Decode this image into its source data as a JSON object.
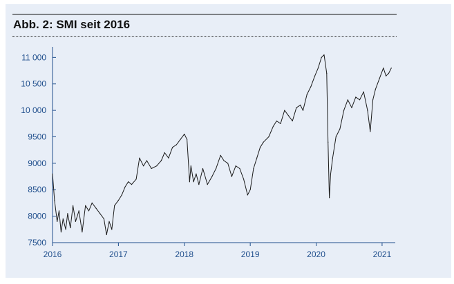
{
  "chart_data": {
    "type": "line",
    "title": "Abb. 2: SMI seit 2016",
    "xlabel": "",
    "ylabel": "",
    "x_tick_labels": [
      "2016",
      "2017",
      "2018",
      "2019",
      "2020",
      "2021"
    ],
    "y_tick_labels": [
      "7500",
      "8000",
      "8500",
      "9000",
      "9500",
      "10 000",
      "10 500",
      "11 000"
    ],
    "y_ticks": [
      7500,
      8000,
      8500,
      9000,
      9500,
      10000,
      10500,
      11000
    ],
    "ylim": [
      7500,
      11200
    ],
    "xlim": [
      2016.0,
      2021.2
    ],
    "grid": false,
    "legend": "none",
    "colors": {
      "background": "#e8eef7",
      "axis": "#1f4e8c",
      "line": "#1a1a1a"
    },
    "series": [
      {
        "values": [
          [
            2016.0,
            8800
          ],
          [
            2016.03,
            8300
          ],
          [
            2016.07,
            7900
          ],
          [
            2016.1,
            8100
          ],
          [
            2016.13,
            7700
          ],
          [
            2016.16,
            7950
          ],
          [
            2016.2,
            7750
          ],
          [
            2016.23,
            8050
          ],
          [
            2016.27,
            7780
          ],
          [
            2016.31,
            8200
          ],
          [
            2016.35,
            7900
          ],
          [
            2016.4,
            8100
          ],
          [
            2016.45,
            7700
          ],
          [
            2016.5,
            8200
          ],
          [
            2016.55,
            8100
          ],
          [
            2016.6,
            8250
          ],
          [
            2016.66,
            8150
          ],
          [
            2016.72,
            8050
          ],
          [
            2016.78,
            7950
          ],
          [
            2016.82,
            7650
          ],
          [
            2016.86,
            7900
          ],
          [
            2016.9,
            7750
          ],
          [
            2016.94,
            8200
          ],
          [
            2017.0,
            8300
          ],
          [
            2017.05,
            8400
          ],
          [
            2017.1,
            8550
          ],
          [
            2017.15,
            8650
          ],
          [
            2017.2,
            8600
          ],
          [
            2017.27,
            8700
          ],
          [
            2017.32,
            9100
          ],
          [
            2017.38,
            8950
          ],
          [
            2017.43,
            9050
          ],
          [
            2017.5,
            8900
          ],
          [
            2017.58,
            8950
          ],
          [
            2017.65,
            9050
          ],
          [
            2017.7,
            9200
          ],
          [
            2017.76,
            9100
          ],
          [
            2017.82,
            9300
          ],
          [
            2017.88,
            9350
          ],
          [
            2017.94,
            9450
          ],
          [
            2018.0,
            9550
          ],
          [
            2018.04,
            9450
          ],
          [
            2018.08,
            8650
          ],
          [
            2018.1,
            8950
          ],
          [
            2018.14,
            8650
          ],
          [
            2018.18,
            8800
          ],
          [
            2018.22,
            8600
          ],
          [
            2018.28,
            8900
          ],
          [
            2018.35,
            8600
          ],
          [
            2018.42,
            8750
          ],
          [
            2018.48,
            8900
          ],
          [
            2018.55,
            9150
          ],
          [
            2018.6,
            9050
          ],
          [
            2018.66,
            9000
          ],
          [
            2018.72,
            8750
          ],
          [
            2018.78,
            8950
          ],
          [
            2018.84,
            8900
          ],
          [
            2018.9,
            8700
          ],
          [
            2018.96,
            8400
          ],
          [
            2019.0,
            8500
          ],
          [
            2019.05,
            8900
          ],
          [
            2019.1,
            9100
          ],
          [
            2019.15,
            9300
          ],
          [
            2019.2,
            9400
          ],
          [
            2019.28,
            9500
          ],
          [
            2019.35,
            9700
          ],
          [
            2019.4,
            9800
          ],
          [
            2019.46,
            9750
          ],
          [
            2019.52,
            10000
          ],
          [
            2019.58,
            9900
          ],
          [
            2019.64,
            9800
          ],
          [
            2019.7,
            10050
          ],
          [
            2019.76,
            10100
          ],
          [
            2019.8,
            10000
          ],
          [
            2019.86,
            10300
          ],
          [
            2019.92,
            10450
          ],
          [
            2019.98,
            10650
          ],
          [
            2020.03,
            10800
          ],
          [
            2020.08,
            11000
          ],
          [
            2020.12,
            11050
          ],
          [
            2020.16,
            10700
          ],
          [
            2020.18,
            9400
          ],
          [
            2020.2,
            8350
          ],
          [
            2020.22,
            8800
          ],
          [
            2020.25,
            9100
          ],
          [
            2020.3,
            9500
          ],
          [
            2020.36,
            9650
          ],
          [
            2020.42,
            10000
          ],
          [
            2020.48,
            10200
          ],
          [
            2020.54,
            10050
          ],
          [
            2020.6,
            10250
          ],
          [
            2020.66,
            10200
          ],
          [
            2020.72,
            10350
          ],
          [
            2020.78,
            10000
          ],
          [
            2020.82,
            9600
          ],
          [
            2020.86,
            10200
          ],
          [
            2020.9,
            10400
          ],
          [
            2020.96,
            10600
          ],
          [
            2021.02,
            10800
          ],
          [
            2021.06,
            10650
          ],
          [
            2021.1,
            10700
          ],
          [
            2021.14,
            10800
          ]
        ]
      }
    ]
  }
}
